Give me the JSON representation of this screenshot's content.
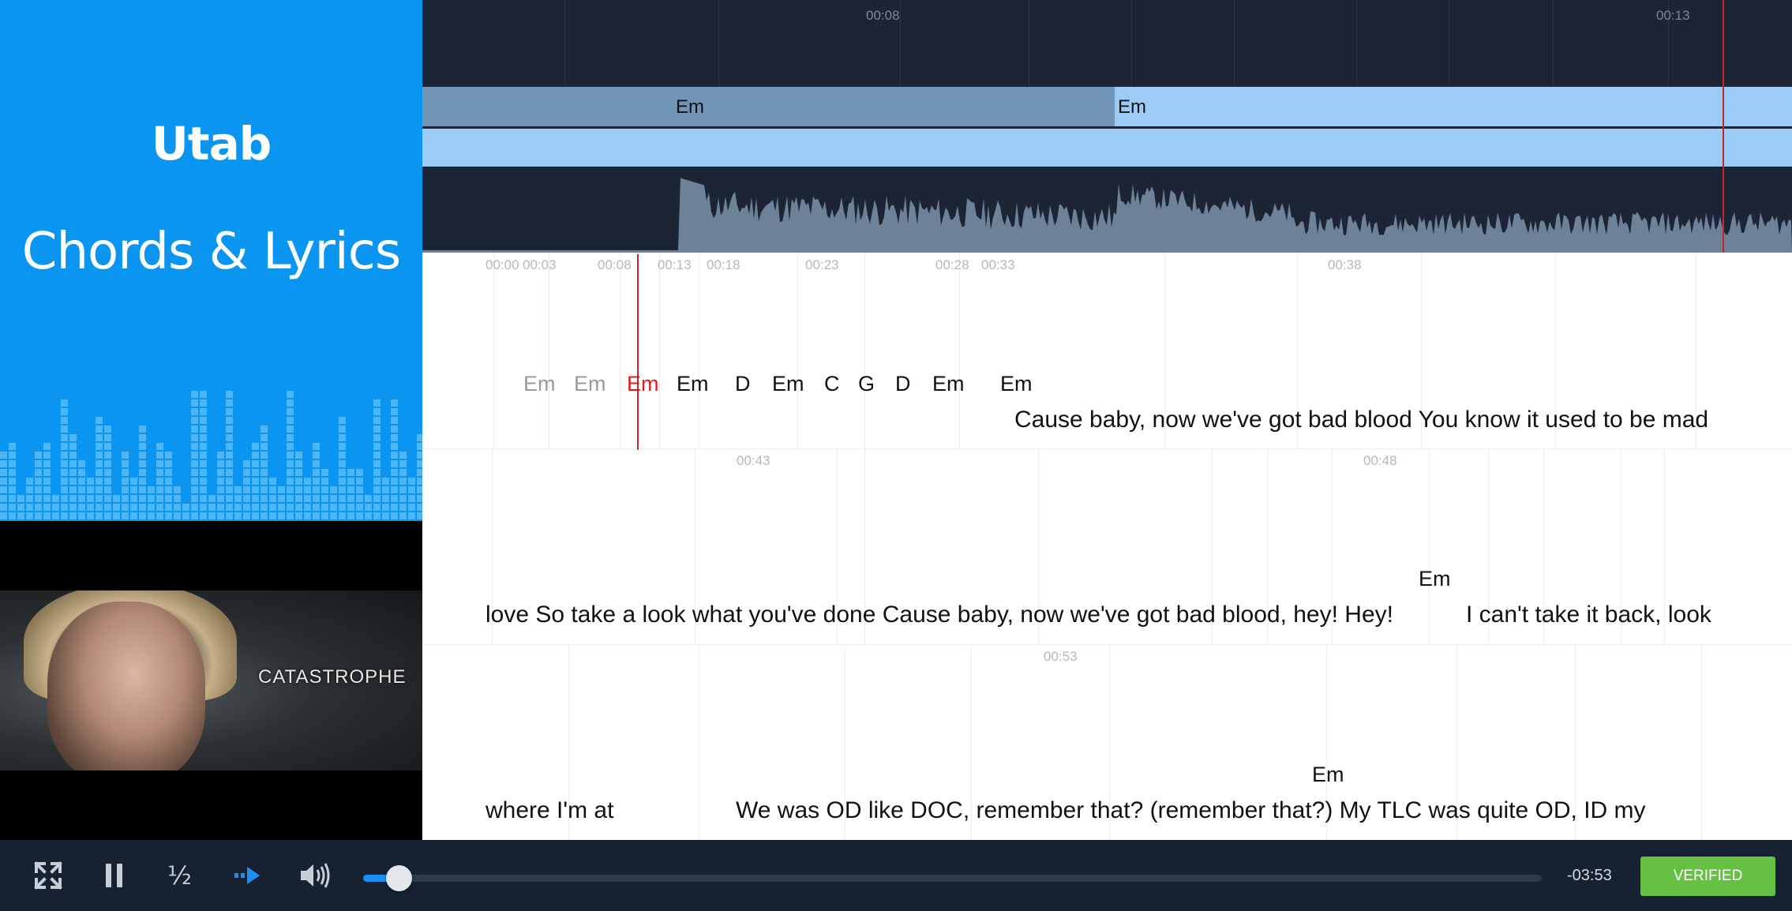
{
  "brand": {
    "logo_text": "Utab",
    "title": "Chords & Lyrics"
  },
  "video": {
    "caption": "CATASTROPHE"
  },
  "timeline": {
    "times": [
      "00:08",
      "00:13"
    ],
    "chord_segments": [
      "Em",
      "Em"
    ]
  },
  "colors": {
    "brand_blue": "#0a96f0",
    "playhead": "#c0282d",
    "verified_green": "#64c144",
    "progress_fill": "#1e8ff2"
  },
  "lyrics_rows": [
    {
      "times": [
        "00:00",
        "00:03",
        "00:08",
        "00:13",
        "00:18",
        "00:23",
        "00:28",
        "00:33",
        "00:38"
      ],
      "chords": [
        {
          "label": "Em",
          "state": "past"
        },
        {
          "label": "Em",
          "state": "past"
        },
        {
          "label": "Em",
          "state": "current"
        },
        {
          "label": "Em",
          "state": "upcoming"
        },
        {
          "label": "D",
          "state": "upcoming"
        },
        {
          "label": "Em",
          "state": "upcoming"
        },
        {
          "label": "C",
          "state": "upcoming"
        },
        {
          "label": "G",
          "state": "upcoming"
        },
        {
          "label": "D",
          "state": "upcoming"
        },
        {
          "label": "Em",
          "state": "upcoming"
        },
        {
          "label": "Em",
          "state": "upcoming"
        }
      ],
      "segments": [
        "Cause baby, now we've got bad blood You know it used to be mad"
      ]
    },
    {
      "times": [
        "00:43",
        "00:48"
      ],
      "chords": [
        {
          "label": "Em",
          "state": "upcoming"
        }
      ],
      "segments": [
        "love So take a look what you've done Cause baby, now we've got bad blood, hey! Hey!",
        "I can't take it back, look"
      ]
    },
    {
      "times": [
        "00:53"
      ],
      "chords": [
        {
          "label": "Em",
          "state": "upcoming"
        }
      ],
      "segments": [
        "where I'm at",
        "We was OD like DOC, remember that? (remember that?) My TLC was quite OD, ID my"
      ]
    }
  ],
  "controls": {
    "fullscreen_icon": "fullscreen-icon",
    "pause_icon": "pause-icon",
    "speed_label": "½",
    "loop_icon": "skip-forward-icon",
    "volume_icon": "volume-icon",
    "progress": 0.03,
    "remaining": "-03:53",
    "verified_label": "VERIFIED"
  }
}
